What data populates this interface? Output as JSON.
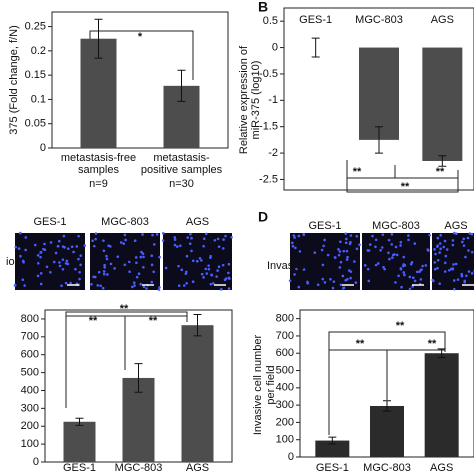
{
  "chart_data": [
    {
      "type": "bar",
      "ylabel": [
        "375 (Fold change, f/N)"
      ],
      "categories": [
        "metastasis-free samples",
        "metastasis-positive samples"
      ],
      "sample_sizes": [
        "n=9",
        "n=30"
      ],
      "values": [
        0.225,
        0.128
      ],
      "errors": [
        0.04,
        0.032
      ],
      "color": "#4d4d4d",
      "ylim": [
        0,
        0.28
      ],
      "yticks": [
        0,
        0.05,
        0.1,
        0.15,
        0.2,
        0.25
      ],
      "annotations": [
        "*"
      ]
    },
    {
      "type": "bar",
      "panel": "B",
      "ylabel": [
        "Relative expression of",
        "miR-375 (log10)"
      ],
      "categories": [
        "GES-1",
        "MGC-803",
        "AGS"
      ],
      "values": [
        0,
        -1.75,
        -2.15
      ],
      "errors": [
        0.18,
        0.25,
        0.1
      ],
      "color": "#4d4d4d",
      "ylim": [
        -2.7,
        0.75
      ],
      "yticks": [
        0.5,
        0,
        -0.5,
        -1,
        -1.5,
        -2,
        -2.5
      ],
      "annotations": [
        "**",
        "**",
        "**"
      ]
    },
    {
      "type": "bar",
      "image_labels": [
        "GES-1",
        "MGC-803",
        "AGS"
      ],
      "image_row_label": "ion",
      "categories": [
        "GES-1",
        "MGC-803",
        "AGS"
      ],
      "values": [
        225,
        470,
        765
      ],
      "errors": [
        20,
        80,
        60
      ],
      "color": "#4d4d4d",
      "ylim": [
        0,
        850
      ],
      "yticks": [
        0,
        100,
        200,
        300,
        400,
        500,
        600,
        700,
        800
      ],
      "annotations": [
        "**",
        "**",
        "**"
      ]
    },
    {
      "type": "bar",
      "panel": "D",
      "image_labels": [
        "GES-1",
        "MGC-803",
        "AGS"
      ],
      "image_row_label": "Invasion",
      "ylabel": [
        "Invasive cell number",
        "per field"
      ],
      "categories": [
        "GES-1",
        "MGC-803",
        "AGS"
      ],
      "values": [
        95,
        295,
        600
      ],
      "errors": [
        20,
        30,
        25
      ],
      "color": "#2b2b2b",
      "ylim": [
        0,
        850
      ],
      "yticks": [
        0,
        100,
        200,
        300,
        400,
        500,
        600,
        700,
        800
      ],
      "annotations": [
        "**",
        "**",
        "**"
      ]
    }
  ]
}
